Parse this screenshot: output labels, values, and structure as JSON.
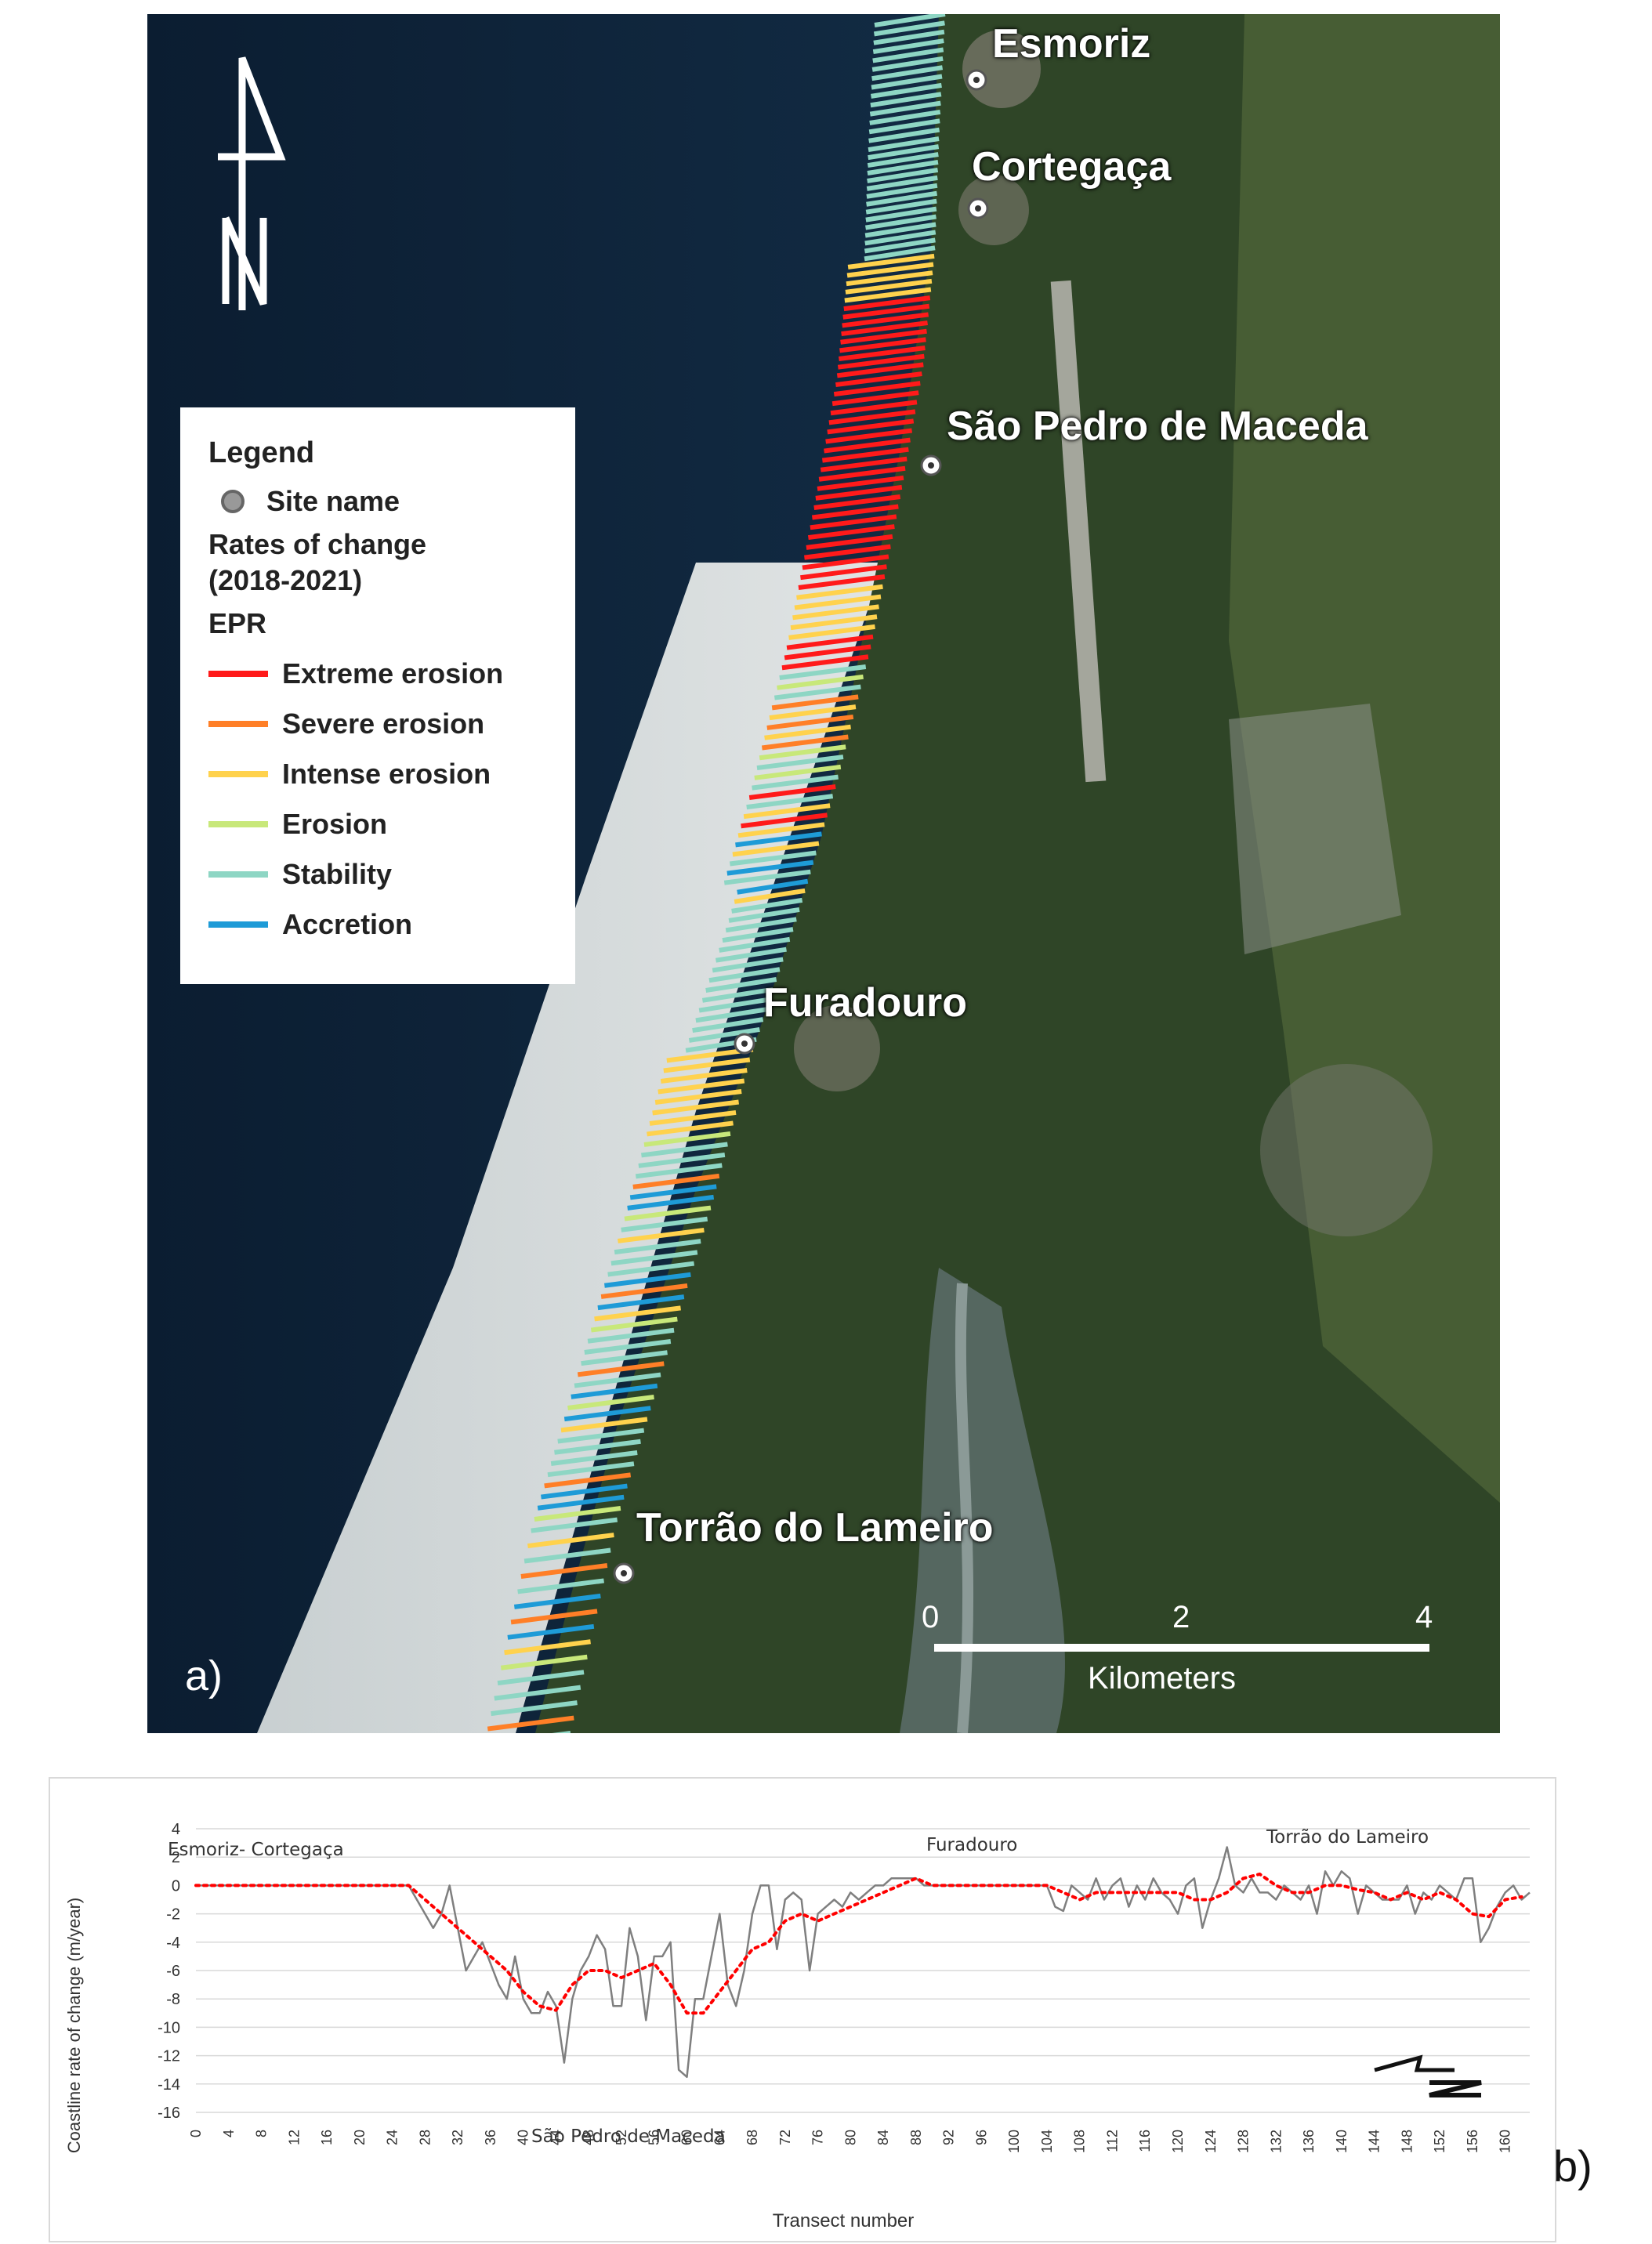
{
  "map": {
    "sites": [
      {
        "name": "Esmoriz"
      },
      {
        "name": "Cortegaça"
      },
      {
        "name": "São Pedro de Maceda"
      },
      {
        "name": "Furadouro"
      },
      {
        "name": "Torrão do Lameiro"
      }
    ],
    "legend": {
      "title": "Legend",
      "site_name": "Site name",
      "subtitle_line1": "Rates of change",
      "subtitle_line2": "(2018-2021)",
      "index_label": "EPR",
      "classes": [
        {
          "label": "Extreme erosion",
          "color": "#ff1a1a"
        },
        {
          "label": "Severe erosion",
          "color": "#ff7f27"
        },
        {
          "label": "Intense erosion",
          "color": "#ffd24d"
        },
        {
          "label": "Erosion",
          "color": "#c8e87a"
        },
        {
          "label": "Stability",
          "color": "#8ed6c4"
        },
        {
          "label": "Accretion",
          "color": "#1e9bd7"
        }
      ]
    },
    "scale_bar": {
      "ticks": [
        "0",
        "2",
        "4"
      ],
      "unit": "Kilometers"
    },
    "panel_label": "a)",
    "north_arrow_icon": "north-arrow-icon"
  },
  "chart_data": {
    "type": "line",
    "xlabel": "Transect number",
    "ylabel": "Coastline rate of change (m/year)",
    "ylim": [
      -16,
      4
    ],
    "yticks": [
      4,
      2,
      0,
      -2,
      -4,
      -6,
      -8,
      -10,
      -12,
      -14,
      -16
    ],
    "xlim": [
      0,
      163
    ],
    "xticks": [
      0,
      4,
      8,
      12,
      16,
      20,
      24,
      28,
      32,
      36,
      40,
      44,
      48,
      52,
      56,
      60,
      64,
      68,
      72,
      76,
      80,
      84,
      88,
      92,
      96,
      100,
      104,
      108,
      112,
      116,
      120,
      124,
      128,
      132,
      136,
      140,
      144,
      148,
      152,
      156,
      160
    ],
    "grid": true,
    "annotations": [
      "Esmoriz- Cortegaça",
      "Furadouro",
      "Torrão do Lameiro",
      "São Pedro de Maceda"
    ],
    "series": [
      {
        "color": "#7f7f7f",
        "style": "solid",
        "x": [
          0,
          26,
          27,
          28,
          29,
          30,
          31,
          32,
          33,
          34,
          35,
          36,
          37,
          38,
          39,
          40,
          41,
          42,
          43,
          44,
          45,
          46,
          47,
          48,
          49,
          50,
          51,
          52,
          53,
          54,
          55,
          56,
          57,
          58,
          59,
          60,
          61,
          62,
          63,
          64,
          65,
          66,
          67,
          68,
          69,
          70,
          71,
          72,
          73,
          74,
          75,
          76,
          77,
          78,
          79,
          80,
          81,
          82,
          83,
          84,
          85,
          86,
          87,
          88,
          89,
          90,
          92,
          96,
          100,
          104,
          105,
          106,
          107,
          108,
          109,
          110,
          111,
          112,
          113,
          114,
          115,
          116,
          117,
          118,
          119,
          120,
          121,
          122,
          123,
          124,
          125,
          126,
          127,
          128,
          129,
          130,
          131,
          132,
          133,
          134,
          135,
          136,
          137,
          138,
          139,
          140,
          141,
          142,
          143,
          144,
          145,
          146,
          147,
          148,
          149,
          150,
          151,
          152,
          153,
          154,
          155,
          156,
          157,
          158,
          159,
          160,
          161,
          162,
          163
        ],
        "y": [
          0,
          0,
          -1,
          -2,
          -3,
          -2,
          0,
          -3,
          -6,
          -5,
          -4,
          -5.5,
          -7,
          -8,
          -5,
          -8,
          -9,
          -9,
          -7.5,
          -8.5,
          -12.5,
          -8,
          -6,
          -5,
          -3.5,
          -4.5,
          -8.5,
          -8.5,
          -3,
          -5,
          -9.5,
          -5,
          -5,
          -4,
          -13,
          -13.5,
          -8,
          -8,
          -5,
          -2,
          -7,
          -8.5,
          -6,
          -2,
          0,
          0,
          -4.5,
          -1,
          -0.5,
          -1,
          -6,
          -2,
          -1.5,
          -1,
          -1.5,
          -0.5,
          -1,
          -0.5,
          0,
          0,
          0.5,
          0.5,
          0.5,
          0.5,
          0,
          0,
          0,
          0,
          0,
          0,
          -1.5,
          -1.8,
          0,
          -0.5,
          -1,
          0.5,
          -1,
          0,
          0.5,
          -1.5,
          0,
          -1,
          0.5,
          -0.5,
          -1,
          -2,
          0,
          0.5,
          -3,
          -1,
          0.5,
          2.7,
          0,
          -0.5,
          0.5,
          -0.5,
          -0.5,
          -1,
          0,
          -0.5,
          -1,
          0,
          -2,
          1,
          0,
          1,
          0.5,
          -2,
          0,
          -0.5,
          -1,
          -1,
          -1,
          0,
          -2,
          -0.5,
          -1,
          0,
          -0.5,
          -1,
          0.5,
          0.5,
          -4,
          -3,
          -1.5,
          -0.5,
          0,
          -1,
          -0.5
        ]
      },
      {
        "color": "#ff0000",
        "style": "dotted",
        "x": [
          0,
          26,
          28,
          30,
          32,
          34,
          36,
          38,
          40,
          42,
          44,
          46,
          48,
          50,
          52,
          54,
          56,
          58,
          60,
          62,
          64,
          66,
          68,
          70,
          72,
          74,
          76,
          78,
          80,
          82,
          84,
          86,
          88,
          90,
          92,
          96,
          100,
          104,
          106,
          108,
          110,
          112,
          114,
          116,
          118,
          120,
          122,
          124,
          126,
          128,
          130,
          132,
          134,
          136,
          138,
          140,
          142,
          144,
          146,
          148,
          150,
          152,
          154,
          156,
          158,
          160,
          162
        ],
        "y": [
          0,
          0,
          -1,
          -2,
          -3,
          -4,
          -5,
          -6,
          -7.5,
          -8.5,
          -8.8,
          -7,
          -6,
          -6,
          -6.5,
          -6,
          -5.5,
          -7,
          -9,
          -9,
          -7.5,
          -6,
          -4.5,
          -4,
          -2.5,
          -2,
          -2.5,
          -2,
          -1.5,
          -1,
          -0.5,
          0,
          0.5,
          0,
          0,
          0,
          0,
          0,
          -0.5,
          -1,
          -0.5,
          -0.5,
          -0.5,
          -0.5,
          -0.5,
          -0.5,
          -1,
          -1,
          -0.5,
          0.5,
          0.8,
          0,
          -0.5,
          -0.5,
          0,
          0,
          -0.3,
          -0.5,
          -1,
          -0.5,
          -1,
          -0.5,
          -1,
          -2,
          -2.2,
          -1,
          -0.8
        ]
      }
    ],
    "compass_icon": "north-arrow-icon",
    "panel_label": "b)"
  }
}
